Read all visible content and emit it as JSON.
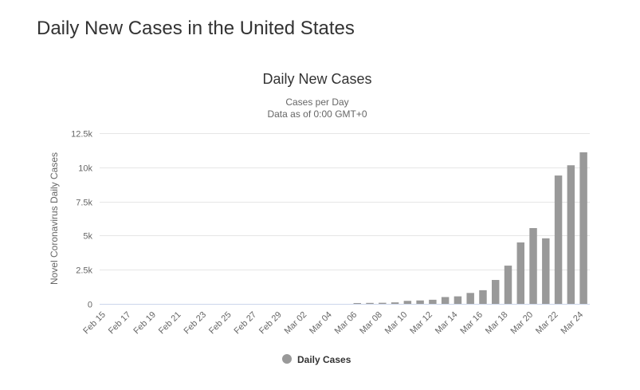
{
  "page": {
    "title": "Daily New Cases in the United States"
  },
  "chart_data": {
    "type": "bar",
    "title": "Daily New Cases",
    "subtitle": [
      "Cases per Day",
      "Data as of 0:00 GMT+0"
    ],
    "ylabel": "Novel Coronavirus Daily Cases",
    "xlabel": "",
    "ylim": [
      0,
      12500
    ],
    "yticks": [
      0,
      2500,
      5000,
      7500,
      10000,
      12500
    ],
    "ytick_labels": [
      "0",
      "2.5k",
      "5k",
      "7.5k",
      "10k",
      "12.5k"
    ],
    "grid": true,
    "legend": "bottom-center",
    "color": "#999999",
    "categories": [
      "Feb 15",
      "Feb 16",
      "Feb 17",
      "Feb 18",
      "Feb 19",
      "Feb 20",
      "Feb 21",
      "Feb 22",
      "Feb 23",
      "Feb 24",
      "Feb 25",
      "Feb 26",
      "Feb 27",
      "Feb 28",
      "Feb 29",
      "Mar 01",
      "Mar 02",
      "Mar 03",
      "Mar 04",
      "Mar 05",
      "Mar 06",
      "Mar 07",
      "Mar 08",
      "Mar 09",
      "Mar 10",
      "Mar 11",
      "Mar 12",
      "Mar 13",
      "Mar 14",
      "Mar 15",
      "Mar 16",
      "Mar 17",
      "Mar 18",
      "Mar 19",
      "Mar 20",
      "Mar 21",
      "Mar 22",
      "Mar 23",
      "Mar 24"
    ],
    "xtick_labels": [
      "Feb 15",
      "Feb 17",
      "Feb 19",
      "Feb 21",
      "Feb 23",
      "Feb 25",
      "Feb 27",
      "Feb 29",
      "Mar 02",
      "Mar 04",
      "Mar 06",
      "Mar 08",
      "Mar 10",
      "Mar 12",
      "Mar 14",
      "Mar 16",
      "Mar 18",
      "Mar 20",
      "Mar 22",
      "Mar 24"
    ],
    "series": [
      {
        "name": "Daily Cases",
        "values": [
          0,
          0,
          0,
          0,
          0,
          0,
          0,
          0,
          0,
          0,
          0,
          0,
          0,
          0,
          0,
          0,
          0,
          0,
          0,
          0,
          60,
          70,
          80,
          110,
          220,
          250,
          300,
          500,
          550,
          800,
          1000,
          1750,
          2800,
          4500,
          5550,
          4800,
          9400,
          10150,
          11100
        ]
      }
    ]
  }
}
